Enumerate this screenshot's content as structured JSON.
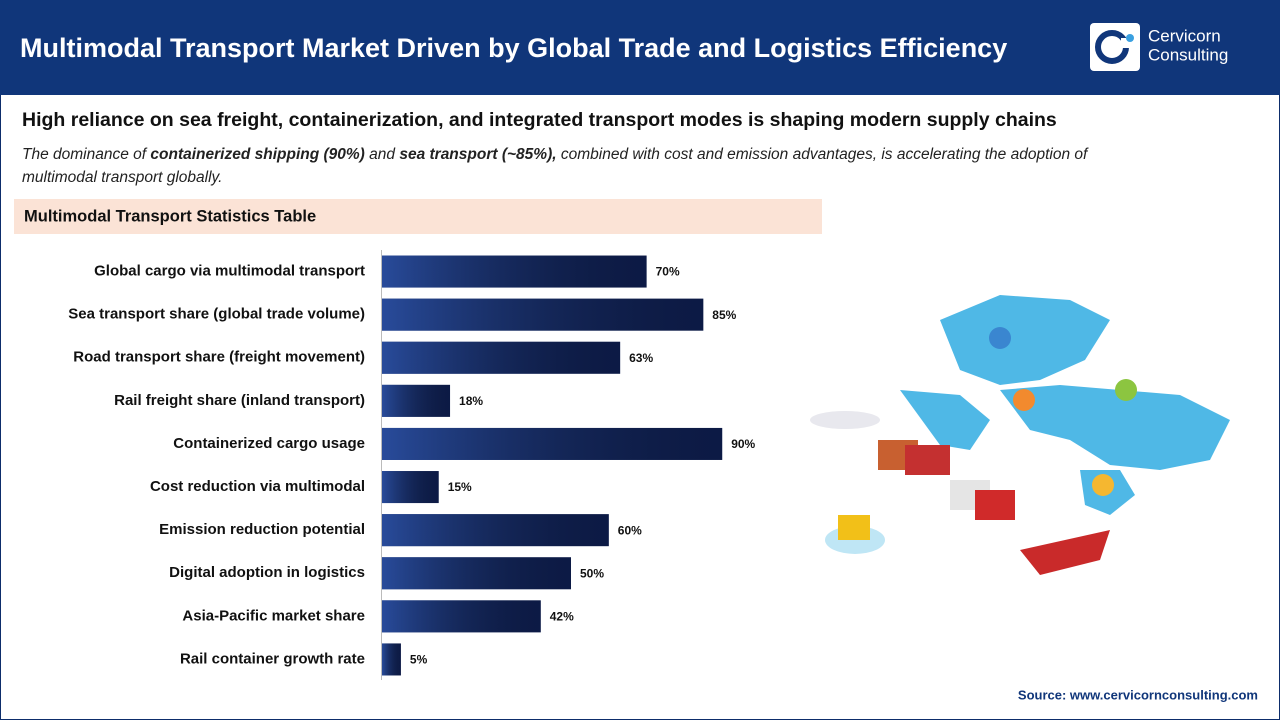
{
  "header": {
    "title": "Multimodal Transport Market Driven by Global Trade and Logistics Efficiency",
    "logo_line1": "Cervicorn",
    "logo_line2": "Consulting"
  },
  "subtitle": "High reliance on sea freight, containerization, and integrated transport modes is shaping modern supply chains",
  "description": {
    "line1": [
      "The dominance of ",
      "containerized shipping (90%)",
      " and ",
      "sea transport (~85%),",
      " combined with cost and emission advantages, is accelerating the adoption of"
    ],
    "line2": "multimodal transport globally."
  },
  "section_title": "Multimodal Transport Statistics Table",
  "chart_data": {
    "type": "bar",
    "orientation": "horizontal",
    "categories": [
      "Global cargo via multimodal transport",
      "Sea transport share (global trade volume)",
      "Road transport share (freight movement)",
      "Rail freight share (inland transport)",
      "Containerized cargo usage",
      "Cost reduction via multimodal",
      "Emission reduction potential",
      "Digital adoption in logistics",
      "Asia-Pacific market share",
      "Rail container growth rate"
    ],
    "values": [
      70,
      85,
      63,
      18,
      90,
      15,
      60,
      50,
      42,
      5
    ],
    "value_labels": [
      "70%",
      "85%",
      "63%",
      "18%",
      "90%",
      "15%",
      "60%",
      "50%",
      "42%",
      "5%"
    ],
    "color": "#13286a",
    "xlim": [
      0,
      100
    ]
  },
  "source": "Source: www.cervicornconsulting.com"
}
